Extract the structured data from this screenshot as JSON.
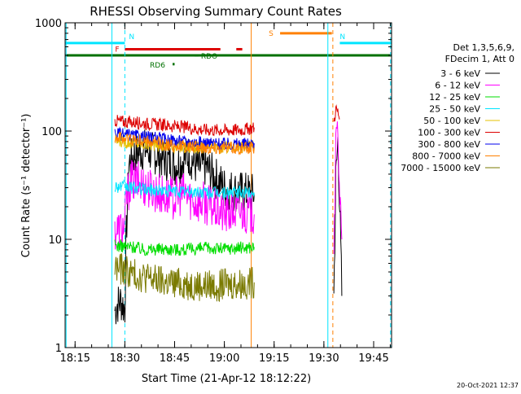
{
  "chart_data": {
    "type": "line",
    "title": "RHESSI Observing Summary Count Rates",
    "xlabel": "Start Time (21-Apr-12 18:12:22)",
    "ylabel": "Count Rate (s⁻¹ detector⁻¹)",
    "yscale": "log",
    "ylim": [
      1,
      1000
    ],
    "xlim_minutes": [
      18.2,
      19.84
    ],
    "x_tick_labels": [
      "18:15",
      "18:30",
      "18:45",
      "19:00",
      "19:15",
      "19:30",
      "19:45"
    ],
    "x_tick_minutes": [
      18.25,
      18.5,
      18.75,
      19.0,
      19.25,
      19.5,
      19.75
    ],
    "y_tick_labels": [
      "1",
      "10",
      "100",
      "1000"
    ],
    "y_tick_values": [
      1,
      10,
      100,
      1000
    ],
    "grid": false,
    "legend_position": "right",
    "legend_header": [
      "Det 1,3,5,6,9,",
      "FDecim 1, Att 0"
    ],
    "footer_date": "20-Oct-2021 12:37",
    "series": [
      {
        "name": "3 - 6 keV",
        "color": "#000000",
        "segments": [
          [
            [
              18.45,
              2.2
            ],
            [
              18.46,
              2.5
            ],
            [
              18.48,
              2.7
            ],
            [
              18.5,
              2.3
            ],
            [
              18.505,
              8
            ],
            [
              18.52,
              50
            ],
            [
              18.55,
              62
            ],
            [
              18.6,
              68
            ],
            [
              18.65,
              62
            ],
            [
              18.7,
              55
            ],
            [
              18.75,
              48
            ],
            [
              18.78,
              52
            ],
            [
              18.82,
              60
            ],
            [
              18.87,
              45
            ],
            [
              18.9,
              48
            ],
            [
              18.95,
              38
            ],
            [
              19.0,
              30
            ],
            [
              19.05,
              28
            ],
            [
              19.1,
              27
            ],
            [
              19.15,
              26
            ]
          ],
          [
            [
              19.55,
              3
            ],
            [
              19.56,
              35
            ],
            [
              19.57,
              80
            ],
            [
              19.58,
              20
            ],
            [
              19.59,
              3
            ]
          ]
        ]
      },
      {
        "name": "6 - 12 keV",
        "color": "#ff00ff",
        "segments": [
          [
            [
              18.45,
              12
            ],
            [
              18.5,
              13
            ],
            [
              18.505,
              22
            ],
            [
              18.53,
              35
            ],
            [
              18.58,
              33
            ],
            [
              18.65,
              28
            ],
            [
              18.7,
              25
            ],
            [
              18.75,
              24
            ],
            [
              18.8,
              27
            ],
            [
              18.85,
              22
            ],
            [
              18.9,
              22
            ],
            [
              18.95,
              19
            ],
            [
              19.0,
              17
            ],
            [
              19.05,
              18
            ],
            [
              19.1,
              18
            ],
            [
              19.15,
              17
            ]
          ],
          [
            [
              19.55,
              10
            ],
            [
              19.56,
              60
            ],
            [
              19.57,
              120
            ],
            [
              19.58,
              25
            ],
            [
              19.59,
              10
            ]
          ]
        ]
      },
      {
        "name": "12 - 25 keV",
        "color": "#00dd00",
        "segments": [
          [
            [
              18.45,
              8.8
            ],
            [
              18.5,
              8.6
            ],
            [
              18.55,
              8.5
            ],
            [
              18.6,
              8.0
            ],
            [
              18.7,
              8.2
            ],
            [
              18.8,
              8.0
            ],
            [
              18.9,
              8.3
            ],
            [
              19.0,
              8.2
            ],
            [
              19.1,
              8.4
            ],
            [
              19.15,
              8.5
            ]
          ]
        ]
      },
      {
        "name": "25 - 50 keV",
        "color": "#00e5ff",
        "segments": [
          [
            [
              18.45,
              31
            ],
            [
              18.5,
              30.5
            ],
            [
              18.6,
              29
            ],
            [
              18.7,
              28
            ],
            [
              18.8,
              27.5
            ],
            [
              18.9,
              27
            ],
            [
              19.0,
              27
            ],
            [
              19.1,
              27
            ],
            [
              19.15,
              27
            ]
          ]
        ]
      },
      {
        "name": "50 - 100 keV",
        "color": "#e5c000",
        "segments": [
          [
            [
              18.45,
              82
            ],
            [
              18.5,
              80
            ],
            [
              18.6,
              76
            ],
            [
              18.7,
              73
            ],
            [
              18.8,
              71
            ],
            [
              18.9,
              71
            ],
            [
              19.0,
              71
            ],
            [
              19.1,
              72
            ],
            [
              19.15,
              72
            ]
          ]
        ]
      },
      {
        "name": "100 - 300 keV",
        "color": "#dd0000",
        "segments": [
          [
            [
              18.45,
              125
            ],
            [
              18.5,
              122
            ],
            [
              18.6,
              118
            ],
            [
              18.7,
              113
            ],
            [
              18.8,
              108
            ],
            [
              18.9,
              103
            ],
            [
              19.0,
              102
            ],
            [
              19.1,
              103
            ],
            [
              19.15,
              108
            ]
          ],
          [
            [
              19.55,
              120
            ],
            [
              19.56,
              160
            ],
            [
              19.57,
              150
            ],
            [
              19.58,
              130
            ]
          ]
        ]
      },
      {
        "name": "300 - 800 keV",
        "color": "#0000ee",
        "segments": [
          [
            [
              18.45,
              95
            ],
            [
              18.5,
              92
            ],
            [
              18.6,
              88
            ],
            [
              18.7,
              84
            ],
            [
              18.8,
              80
            ],
            [
              18.9,
              78
            ],
            [
              19.0,
              76
            ],
            [
              19.1,
              76
            ],
            [
              19.15,
              77
            ]
          ]
        ]
      },
      {
        "name": "800 - 7000 keV",
        "color": "#ff8000",
        "segments": [
          [
            [
              18.45,
              88
            ],
            [
              18.5,
              86
            ],
            [
              18.6,
              80
            ],
            [
              18.7,
              75
            ],
            [
              18.8,
              72
            ],
            [
              18.9,
              71
            ],
            [
              19.0,
              70
            ],
            [
              19.1,
              70
            ],
            [
              19.15,
              70
            ]
          ]
        ]
      },
      {
        "name": "7000 - 15000 keV",
        "color": "#7a7a00",
        "segments": [
          [
            [
              18.45,
              5.5
            ],
            [
              18.5,
              5.2
            ],
            [
              18.55,
              4.7
            ],
            [
              18.6,
              4.5
            ],
            [
              18.65,
              4.2
            ],
            [
              18.7,
              4.0
            ],
            [
              18.75,
              3.9
            ],
            [
              18.8,
              3.9
            ],
            [
              18.9,
              3.7
            ],
            [
              19.0,
              3.8
            ],
            [
              19.1,
              3.9
            ],
            [
              19.15,
              4.0
            ]
          ]
        ]
      }
    ],
    "flags": [
      {
        "label": "N",
        "color": "#00e5ff",
        "x": [
          18.2,
          18.5
        ],
        "y": 650,
        "dashed_x": 18.5
      },
      {
        "label": "N",
        "color": "#00e5ff",
        "x": [
          19.58,
          19.84
        ],
        "y": 650
      },
      {
        "label": "F",
        "color": "#dd0000",
        "x": [
          18.5,
          18.98
        ],
        "y": 570
      },
      {
        "label": "",
        "color": "#dd0000",
        "x": [
          19.06,
          19.09
        ],
        "y": 570
      },
      {
        "label": "S",
        "color": "#ff8000",
        "x": [
          19.28,
          19.54
        ],
        "y": 800
      },
      {
        "label": "RDO",
        "color": "#007000",
        "x": [
          18.85,
          18.87
        ],
        "y": 500
      },
      {
        "label": "RD6",
        "color": "#007000",
        "x": [
          18.74,
          18.75
        ],
        "y": 415
      },
      {
        "label": "",
        "color": "#007000",
        "x": [
          18.2,
          19.84
        ],
        "y": 500
      }
    ],
    "vertical_lines": [
      {
        "x": 18.205,
        "color": "#00e5ff",
        "dashed": false
      },
      {
        "x": 18.435,
        "color": "#00e5ff",
        "dashed": false
      },
      {
        "x": 18.5,
        "color": "#00e5ff",
        "dashed": true
      },
      {
        "x": 19.135,
        "color": "#ff8000",
        "dashed": false
      },
      {
        "x": 19.52,
        "color": "#00e5ff",
        "dashed": false
      },
      {
        "x": 19.545,
        "color": "#ff8000",
        "dashed": true
      },
      {
        "x": 19.835,
        "color": "#00e5ff",
        "dashed": true
      }
    ]
  }
}
